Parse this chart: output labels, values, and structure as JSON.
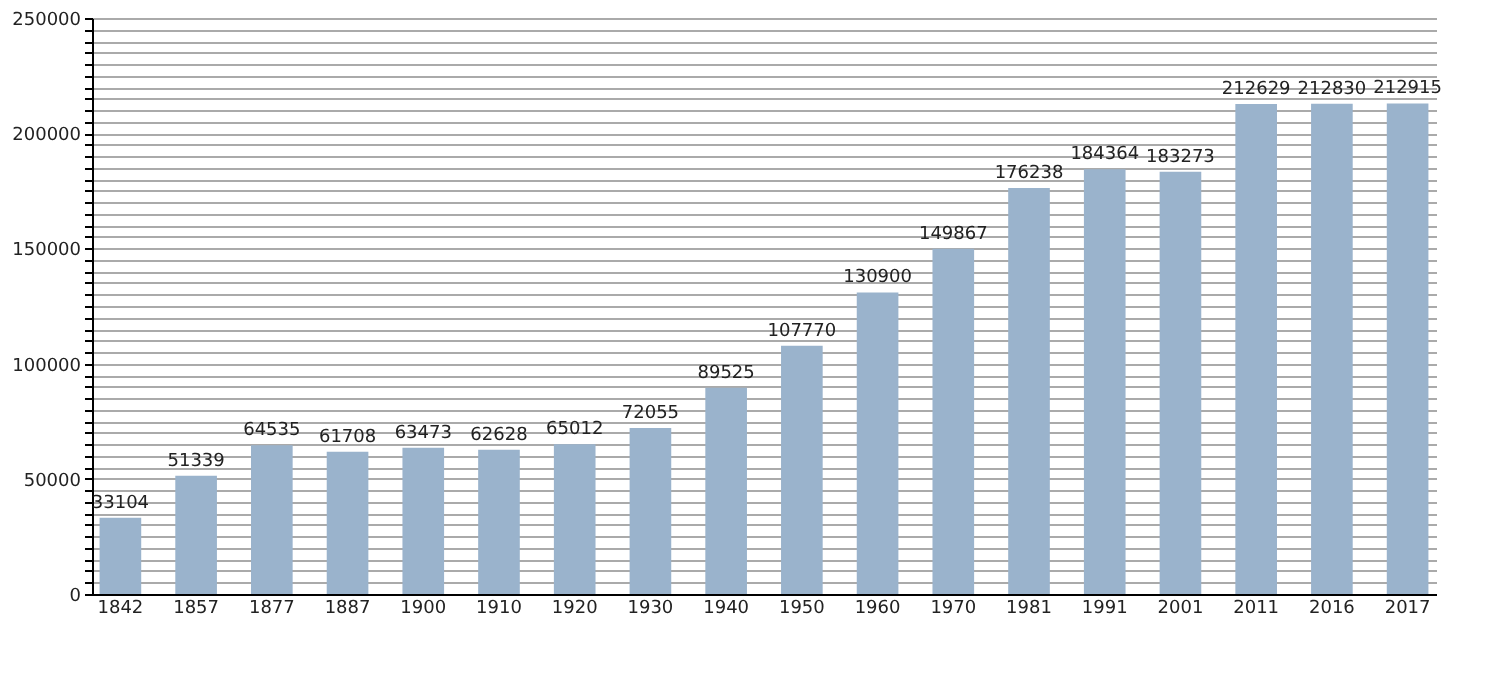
{
  "chart_data": {
    "type": "bar",
    "categories": [
      "1842",
      "1857",
      "1877",
      "1887",
      "1900",
      "1910",
      "1920",
      "1930",
      "1940",
      "1950",
      "1960",
      "1970",
      "1981",
      "1991",
      "2001",
      "2011",
      "2016",
      "2017"
    ],
    "values": [
      33104,
      51339,
      64535,
      61708,
      63473,
      62628,
      65012,
      72055,
      89525,
      107770,
      130900,
      149867,
      176238,
      184364,
      183273,
      212629,
      212830,
      212915
    ],
    "color": "#9ab3cc",
    "data_labels": true,
    "ylim": [
      0,
      250000
    ],
    "yticks": [
      0,
      {
        "value": 5000,
        "label": null
      },
      {
        "value": 10000,
        "label": null
      },
      {
        "value": 15000,
        "label": null
      },
      {
        "value": 20000,
        "label": null
      },
      {
        "value": 25000,
        "label": null
      },
      {
        "value": 30000,
        "label": null
      },
      {
        "value": 35000,
        "label": null
      },
      {
        "value": 40000,
        "label": null
      },
      {
        "value": 45000,
        "label": null
      },
      50000,
      {
        "value": 55000,
        "label": null
      },
      {
        "value": 60000,
        "label": null
      },
      {
        "value": 65000,
        "label": null
      },
      {
        "value": 70000,
        "label": null
      },
      {
        "value": 75000,
        "label": null
      },
      {
        "value": 80000,
        "label": null
      },
      {
        "value": 85000,
        "label": null
      },
      {
        "value": 90000,
        "label": null
      },
      {
        "value": 95000,
        "label": null
      },
      100000,
      {
        "value": 105000,
        "label": null
      },
      {
        "value": 110000,
        "label": null
      },
      {
        "value": 115000,
        "label": null
      },
      {
        "value": 120000,
        "label": null
      },
      {
        "value": 125000,
        "label": null
      },
      {
        "value": 130000,
        "label": null
      },
      {
        "value": 135000,
        "label": null
      },
      {
        "value": 140000,
        "label": null
      },
      {
        "value": 145000,
        "label": null
      },
      150000,
      {
        "value": 155000,
        "label": null
      },
      {
        "value": 160000,
        "label": null
      },
      {
        "value": 165000,
        "label": null
      },
      {
        "value": 170000,
        "label": null
      },
      {
        "value": 175000,
        "label": null
      },
      {
        "value": 180000,
        "label": null
      },
      {
        "value": 185000,
        "label": null
      },
      {
        "value": 190000,
        "label": null
      },
      {
        "value": 195000,
        "label": null
      },
      200000,
      {
        "value": 205000,
        "label": null
      },
      {
        "value": 210000,
        "label": null
      },
      {
        "value": 215000,
        "label": null
      },
      {
        "value": 220000,
        "label": null
      },
      {
        "value": 225000,
        "label": null
      },
      {
        "value": 230000,
        "label": null
      },
      {
        "value": 235000,
        "label": null
      },
      {
        "value": 240000,
        "label": null
      },
      {
        "value": 245000,
        "label": null
      },
      250000
    ],
    "grid": true
  }
}
